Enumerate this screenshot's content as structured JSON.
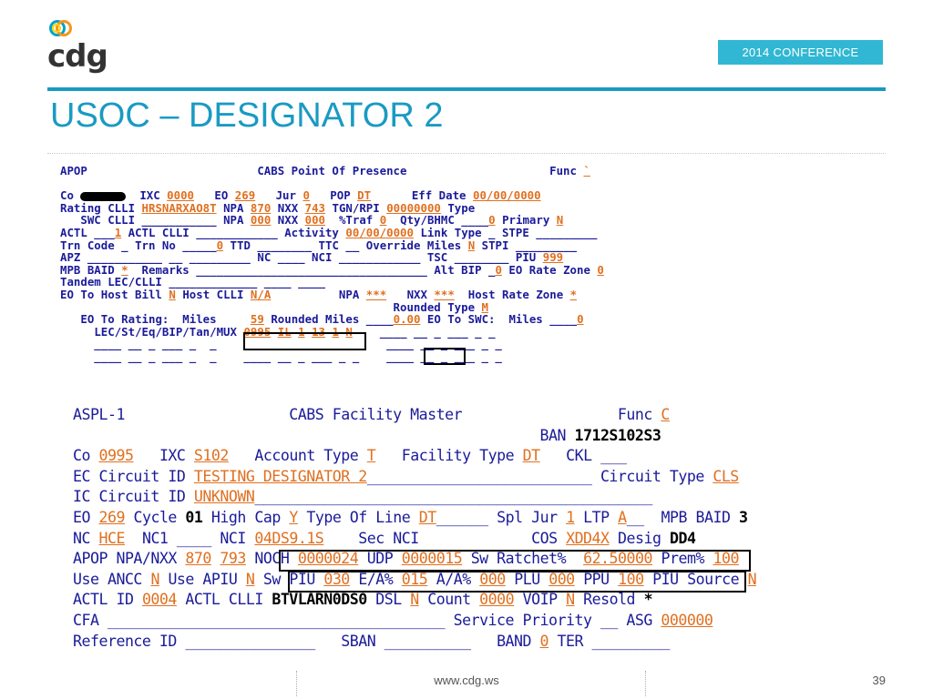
{
  "header": {
    "logo_text": "cdg",
    "badge": "2014 CONFERENCE"
  },
  "title": "USOC – DESIGNATOR 2",
  "footer": {
    "url": "www.cdg.ws",
    "page": "39"
  },
  "screen1": {
    "title_left": "APOP",
    "title_center": "CABS Point Of Presence",
    "func_label": "Func",
    "func_value": "`",
    "co": "Co",
    "ixc": "IXC",
    "ixc_val": "0000",
    "eo": "EO",
    "eo_val": "269",
    "jur": "Jur",
    "jur_val": "0",
    "pop": "POP",
    "pop_val": "DT",
    "eff_date": "Eff Date",
    "eff_date_val": "00/00/0000",
    "rating_clli": "Rating CLLI",
    "rating_clli_val": "HRSNARXAO8T",
    "npa": "NPA",
    "npa_val": "870",
    "nxx": "NXX",
    "nxx_val": "743",
    "tgn": "TGN/RPI",
    "tgn_val": "00000000",
    "type": "Type",
    "swc_clli": "SWC CLLI",
    "npa2_val": "000",
    "nxx2_val": "000",
    "traf": "%Traf",
    "traf_val": "0",
    "qty": "Qty/BHMC",
    "qty_val": "0",
    "primary": "Primary",
    "primary_val": "N",
    "actl": "ACTL",
    "actl_val": "1",
    "actl_clli": "ACTL CLLI",
    "activity": "Activity",
    "activity_val": "00/00/0000",
    "link_type": "Link Type",
    "stpe": "STPE",
    "trn_code": "Trn Code",
    "trn_no": "Trn No",
    "trn_val": "0",
    "ttd": "TTD",
    "ttc": "TTC",
    "override": "Override Miles",
    "override_val": "N",
    "stpi": "STPI",
    "apz": "APZ",
    "nc": "NC",
    "nci": "NCI",
    "tsc": "TSC",
    "piu": "PIU",
    "piu_val": "999",
    "mpb_baid": "MPB BAID",
    "mpb_val": "*",
    "remarks": "Remarks",
    "alt_bip": "Alt BIP",
    "alt_bip_val": "0",
    "eo_rate_zone": "EO Rate Zone",
    "eo_rate_zone_val": "0",
    "tandem": "Tandem LEC/CLLI",
    "eo_to_host": "EO To Host Bill",
    "eo_to_host_val": "N",
    "host_clli": "Host CLLI",
    "host_clli_val": "N/A",
    "npa3_val": "***",
    "nxx3_val": "***",
    "host_rate_zone": "Host Rate Zone",
    "host_rate_zone_val": "*",
    "rounded_type": "Rounded Type",
    "rounded_type_val": "M",
    "eo_to_rating": "EO To Rating:",
    "miles": "Miles",
    "miles_val": "59",
    "rounded_miles": "Rounded Miles",
    "rounded_miles_val": "0.00",
    "eo_to_swc": "EO To SWC:",
    "swc_miles_val": "0",
    "lec": "LEC/St/Eq/BIP/Tan/MUX",
    "lec_v1": "0995",
    "lec_v2": "IL",
    "lec_v3": "1",
    "lec_v4": "13",
    "lec_v5": "1",
    "lec_v6": "N"
  },
  "screen2": {
    "title_left": "ASPL-1",
    "title_center": "CABS Facility Master",
    "func_label": "Func",
    "func_value": "C",
    "ban_label": "BAN",
    "ban_val": "1712S102S3",
    "co": "Co",
    "co_val": "0995",
    "ixc": "IXC",
    "ixc_val": "S102",
    "account_type": "Account Type",
    "account_type_val": "T",
    "facility_type": "Facility Type",
    "facility_type_val": "DT",
    "ckl": "CKL",
    "ec_circuit": "EC Circuit ID",
    "ec_circuit_val": "TESTING DESIGNATOR 2",
    "circuit_type": "Circuit Type",
    "circuit_type_val": "CLS",
    "ic_circuit": "IC Circuit ID",
    "ic_circuit_val": "UNKNOWN",
    "eo": "EO",
    "eo_val": "269",
    "cycle": "Cycle",
    "cycle_val": "01",
    "high_cap": "High Cap",
    "high_cap_val": "Y",
    "type_of_line": "Type Of Line",
    "type_of_line_val": "DT",
    "spl_jur": "Spl Jur",
    "spl_jur_val": "1",
    "ltp": "LTP",
    "ltp_val": "A",
    "mpb_baid": "MPB BAID",
    "mpb_val": "3",
    "nc": "NC",
    "nc_val": "HCE",
    "nc1": "NC1",
    "nci": "NCI",
    "nci_val": "04DS9.1S",
    "sec_nci": "Sec NCI",
    "cos": "COS",
    "cos_val": "XDD4X",
    "desig": "Desig",
    "desig_val": "DD4",
    "apop": "APOP NPA/NXX",
    "apop_npa": "870",
    "apop_nxx": "793",
    "noch": "NOCH",
    "noch_val": "0000024",
    "udp": "UDP",
    "udp_val": "0000015",
    "sw_ratchet": "Sw Ratchet%",
    "sw_ratchet_val": "62.50000",
    "prem": "Prem%",
    "prem_val": "100",
    "use_ancc": "Use ANCC",
    "use_ancc_val": "N",
    "use_apiu": "Use APIU",
    "use_apiu_val": "N",
    "sw_piu": "Sw PIU",
    "sw_piu_val": "030",
    "ea": "E/A%",
    "ea_val": "015",
    "aa": "A/A%",
    "aa_val": "000",
    "plu": "PLU",
    "plu_val": "000",
    "ppu": "PPU",
    "ppu_val": "100",
    "piu_source": "PIU Source",
    "piu_source_val": "N",
    "actl_id": "ACTL ID",
    "actl_id_val": "0004",
    "actl_clli": "ACTL CLLI",
    "actl_clli_val": "BTVLARN0DS0",
    "dsl": "DSL",
    "dsl_val": "N",
    "count": "Count",
    "count_val": "0000",
    "voip": "VOIP",
    "voip_val": "N",
    "resold": "Resold",
    "resold_val": "*",
    "cfa": "CFA",
    "service_priority": "Service Priority",
    "asg": "ASG",
    "asg_val": "000000",
    "reference_id": "Reference ID",
    "sban": "SBAN",
    "band": "BAND",
    "band_val": "0",
    "ter": "TER"
  }
}
